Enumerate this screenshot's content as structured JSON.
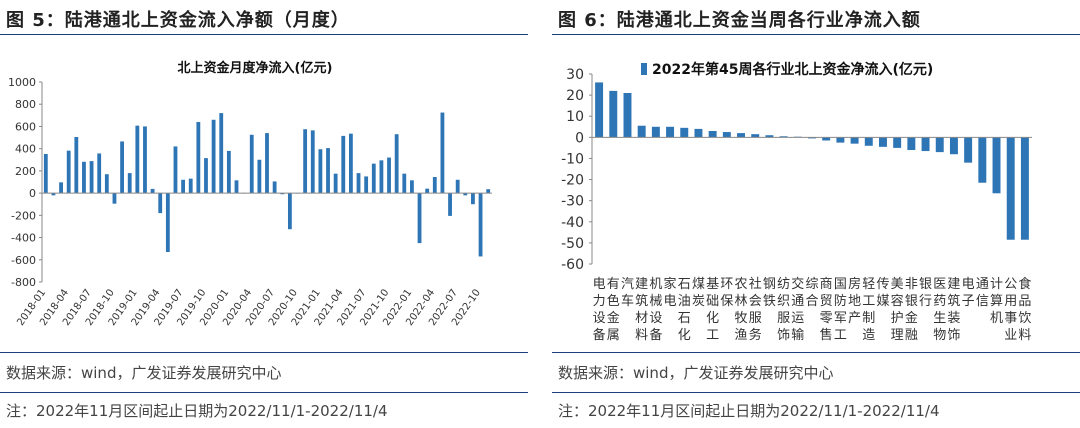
{
  "left": {
    "figure_title": "图 5：陆港通北上资金流入净额（月度）",
    "source": "数据来源：wind，广发证券发展研究中心",
    "note": "注：2022年11月区间起止日期为2022/11/1-2022/11/4",
    "chart_data": {
      "type": "bar",
      "title": "北上资金月度净流入(亿元)",
      "xlabel": "",
      "ylabel": "",
      "ylim": [
        -800,
        1000
      ],
      "yticks": [
        -800,
        -600,
        -400,
        -200,
        0,
        200,
        400,
        600,
        800,
        1000
      ],
      "tick_labels": [
        "2018-01",
        "2018-04",
        "2018-07",
        "2018-10",
        "2019-01",
        "2019-04",
        "2019-07",
        "2019-10",
        "2020-01",
        "2020-04",
        "2020-07",
        "2020-10",
        "2021-01",
        "2021-04",
        "2021-07",
        "2021-10",
        "2022-01",
        "2022-04",
        "2022-07",
        "2022-10"
      ],
      "categories": [
        "2018-01",
        "2018-02",
        "2018-03",
        "2018-04",
        "2018-05",
        "2018-06",
        "2018-07",
        "2018-08",
        "2018-09",
        "2018-10",
        "2018-11",
        "2018-12",
        "2019-01",
        "2019-02",
        "2019-03",
        "2019-04",
        "2019-05",
        "2019-06",
        "2019-07",
        "2019-08",
        "2019-09",
        "2019-10",
        "2019-11",
        "2019-12",
        "2020-01",
        "2020-02",
        "2020-03",
        "2020-04",
        "2020-05",
        "2020-06",
        "2020-07",
        "2020-08",
        "2020-09",
        "2020-10",
        "2020-11",
        "2020-12",
        "2021-01",
        "2021-02",
        "2021-03",
        "2021-04",
        "2021-05",
        "2021-06",
        "2021-07",
        "2021-08",
        "2021-09",
        "2021-10",
        "2021-11",
        "2021-12",
        "2022-01",
        "2022-02",
        "2022-03",
        "2022-04",
        "2022-05",
        "2022-06",
        "2022-07",
        "2022-08",
        "2022-09",
        "2022-10",
        "2022-11"
      ],
      "values": [
        352,
        -20,
        97,
        382,
        505,
        282,
        288,
        357,
        170,
        -95,
        465,
        180,
        607,
        600,
        38,
        -180,
        -530,
        420,
        120,
        130,
        640,
        315,
        660,
        720,
        380,
        115,
        0,
        525,
        300,
        540,
        105,
        -10,
        -325,
        0,
        575,
        565,
        395,
        405,
        175,
        515,
        535,
        180,
        150,
        265,
        295,
        320,
        530,
        175,
        115,
        -450,
        40,
        145,
        725,
        -205,
        120,
        -20,
        -100,
        -570,
        35
      ],
      "bar_color": "#2e75b6"
    }
  },
  "right": {
    "figure_title": "图 6：陆港通北上资金当周各行业净流入额",
    "source": "数据来源：wind，广发证券发展研究中心",
    "note": "注：2022年11月区间起止日期为2022/11/1-2022/11/4",
    "chart_data": {
      "type": "bar",
      "title": "",
      "legend": "2022年第45周各行业北上资金净流入(亿元)",
      "xlabel": "",
      "ylabel": "",
      "ylim": [
        -60,
        30
      ],
      "yticks": [
        -60,
        -50,
        -40,
        -30,
        -20,
        -10,
        0,
        10,
        20,
        30
      ],
      "categories": [
        "电力设备",
        "有色金属",
        "汽车",
        "建筑材料",
        "机械设备",
        "家电",
        "石油石化",
        "煤炭",
        "基础化工",
        "环保",
        "农林牧渔",
        "社会服务",
        "钢铁",
        "纺织服饰",
        "交通运输",
        "综合",
        "商贸零售",
        "国防军工",
        "房地产",
        "轻工制造",
        "传媒",
        "美容护理",
        "非银金融",
        "银行",
        "医药生物",
        "建筑装饰",
        "电子",
        "通信",
        "计算机",
        "公用事业",
        "食品饮料"
      ],
      "values": [
        26,
        22,
        21,
        5.5,
        5,
        5,
        4.5,
        4,
        3,
        2.5,
        2,
        1.5,
        1,
        0.5,
        0.3,
        -0.5,
        -1.5,
        -2.5,
        -3,
        -4,
        -4.5,
        -5,
        -6,
        -6.5,
        -7,
        -8,
        -12,
        -21.5,
        -26.5,
        -48.5,
        -48.5
      ],
      "bar_color": "#2e75b6"
    }
  }
}
